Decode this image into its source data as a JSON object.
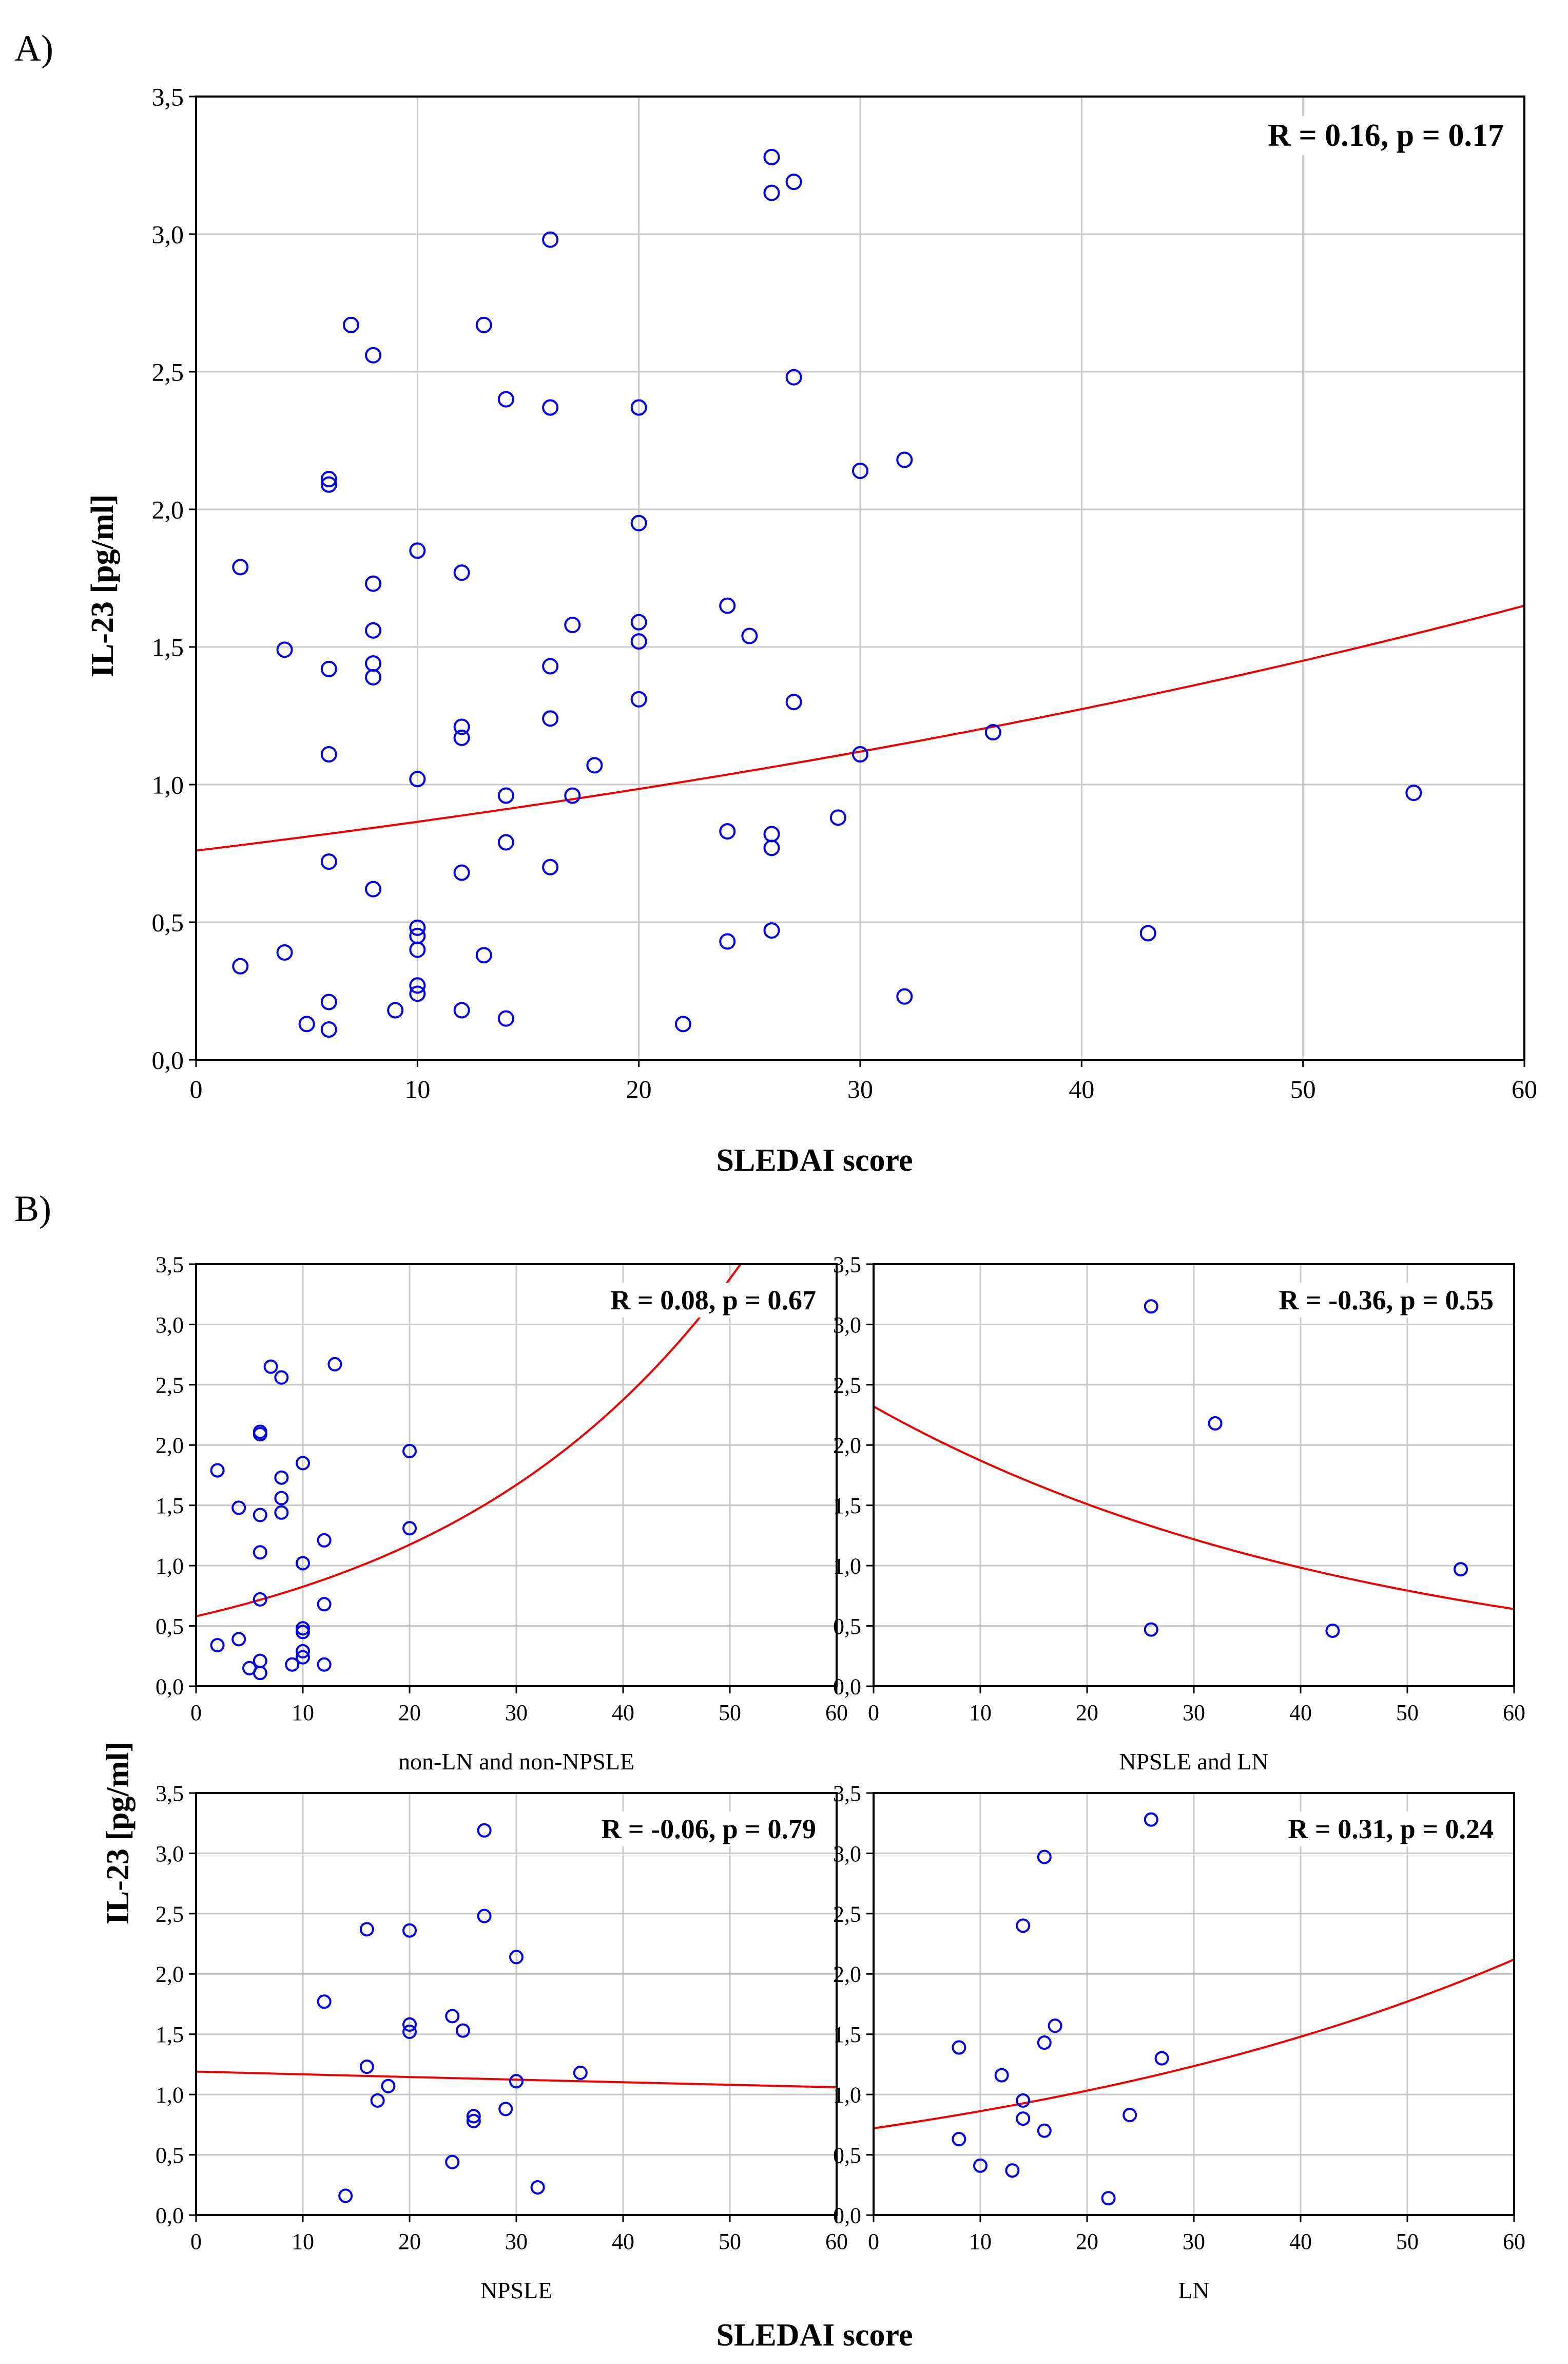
{
  "figure": {
    "panel_a_label": "A)",
    "panel_b_label": "B)",
    "ylabel": "IL-23 [pg/ml]",
    "xlabel": "SLEDAI score",
    "colors": {
      "points": "#0000ee",
      "fit": "#ee0000",
      "grid": "#c8c8c8",
      "axis": "#000000"
    }
  },
  "chart_data": [
    {
      "id": "A",
      "type": "scatter",
      "title": "",
      "annotation": "R = 0.16, p = 0.17",
      "xlabel": "SLEDAI score",
      "ylabel": "IL-23 [pg/ml]",
      "xlim": [
        0,
        60
      ],
      "ylim": [
        0,
        3.5
      ],
      "xticks": [
        "0",
        "10",
        "20",
        "30",
        "40",
        "50",
        "60"
      ],
      "yticks": [
        "0,0",
        "0,5",
        "1,0",
        "1,5",
        "2,0",
        "2,5",
        "3,0",
        "3,5"
      ],
      "fit": {
        "type": "exponential",
        "y_at_0": 0.76,
        "y_at_60": 1.65
      },
      "points": [
        [
          2,
          1.79
        ],
        [
          2,
          0.34
        ],
        [
          4,
          1.49
        ],
        [
          4,
          0.39
        ],
        [
          5,
          0.13
        ],
        [
          6,
          2.11
        ],
        [
          6,
          2.09
        ],
        [
          6,
          1.42
        ],
        [
          6,
          1.11
        ],
        [
          6,
          0.72
        ],
        [
          6,
          0.21
        ],
        [
          6,
          0.11
        ],
        [
          7,
          2.67
        ],
        [
          8,
          2.56
        ],
        [
          8,
          1.73
        ],
        [
          8,
          1.56
        ],
        [
          8,
          1.44
        ],
        [
          8,
          1.39
        ],
        [
          8,
          0.62
        ],
        [
          9,
          0.18
        ],
        [
          10,
          1.85
        ],
        [
          10,
          1.02
        ],
        [
          10,
          0.48
        ],
        [
          10,
          0.45
        ],
        [
          10,
          0.4
        ],
        [
          10,
          0.27
        ],
        [
          10,
          0.24
        ],
        [
          12,
          1.77
        ],
        [
          12,
          1.21
        ],
        [
          12,
          1.17
        ],
        [
          12,
          0.68
        ],
        [
          12,
          0.18
        ],
        [
          13,
          2.67
        ],
        [
          13,
          0.38
        ],
        [
          14,
          2.4
        ],
        [
          14,
          0.96
        ],
        [
          14,
          0.79
        ],
        [
          14,
          0.15
        ],
        [
          16,
          2.98
        ],
        [
          16,
          2.37
        ],
        [
          16,
          1.43
        ],
        [
          16,
          1.24
        ],
        [
          16,
          0.7
        ],
        [
          17,
          1.58
        ],
        [
          17,
          0.96
        ],
        [
          18,
          1.07
        ],
        [
          20,
          2.37
        ],
        [
          20,
          1.95
        ],
        [
          20,
          1.59
        ],
        [
          20,
          1.52
        ],
        [
          20,
          1.31
        ],
        [
          22,
          0.13
        ],
        [
          24,
          1.65
        ],
        [
          24,
          0.83
        ],
        [
          24,
          0.43
        ],
        [
          25,
          1.54
        ],
        [
          26,
          3.28
        ],
        [
          26,
          3.15
        ],
        [
          26,
          0.82
        ],
        [
          26,
          0.77
        ],
        [
          26,
          0.47
        ],
        [
          27,
          3.19
        ],
        [
          27,
          2.48
        ],
        [
          27,
          1.3
        ],
        [
          29,
          0.88
        ],
        [
          30,
          2.14
        ],
        [
          30,
          1.11
        ],
        [
          32,
          2.18
        ],
        [
          32,
          0.23
        ],
        [
          36,
          1.19
        ],
        [
          43,
          0.46
        ],
        [
          55,
          0.97
        ]
      ]
    },
    {
      "id": "B1",
      "type": "scatter",
      "title": "non-LN and non-NPSLE",
      "annotation": "R = 0.08, p = 0.67",
      "xlim": [
        0,
        60
      ],
      "ylim": [
        0,
        3.5
      ],
      "xticks": [
        "0",
        "10",
        "20",
        "30",
        "40",
        "50",
        "60"
      ],
      "yticks": [
        "0,0",
        "0,5",
        "1,0",
        "1,5",
        "2,0",
        "2,5",
        "3,0",
        "3,5"
      ],
      "fit": {
        "type": "exponential",
        "y_at_0": 0.58,
        "y_at_51": 3.5
      },
      "points": [
        [
          2,
          1.79
        ],
        [
          2,
          0.34
        ],
        [
          4,
          1.48
        ],
        [
          4,
          0.39
        ],
        [
          5,
          0.15
        ],
        [
          6,
          2.11
        ],
        [
          6,
          2.09
        ],
        [
          6,
          1.42
        ],
        [
          6,
          1.11
        ],
        [
          6,
          0.72
        ],
        [
          6,
          0.21
        ],
        [
          6,
          0.11
        ],
        [
          7,
          2.65
        ],
        [
          8,
          2.56
        ],
        [
          8,
          1.73
        ],
        [
          8,
          1.56
        ],
        [
          8,
          1.44
        ],
        [
          9,
          0.18
        ],
        [
          10,
          1.85
        ],
        [
          10,
          1.02
        ],
        [
          10,
          0.48
        ],
        [
          10,
          0.45
        ],
        [
          10,
          0.29
        ],
        [
          10,
          0.24
        ],
        [
          12,
          1.21
        ],
        [
          12,
          0.68
        ],
        [
          12,
          0.18
        ],
        [
          13,
          2.67
        ],
        [
          20,
          1.95
        ],
        [
          20,
          1.31
        ]
      ]
    },
    {
      "id": "B2",
      "type": "scatter",
      "title": "NPSLE and LN",
      "annotation": "R = -0.36, p = 0.55",
      "xlim": [
        0,
        60
      ],
      "ylim": [
        0,
        3.5
      ],
      "xticks": [
        "0",
        "10",
        "20",
        "30",
        "40",
        "50",
        "60"
      ],
      "yticks": [
        "0,0",
        "0,5",
        "1,0",
        "1,5",
        "2,0",
        "2,5",
        "3,0",
        "3,5"
      ],
      "fit": {
        "type": "exponential",
        "y_at_0": 2.32,
        "y_at_60": 0.64
      },
      "points": [
        [
          26,
          3.15
        ],
        [
          26,
          0.47
        ],
        [
          32,
          2.18
        ],
        [
          43,
          0.46
        ],
        [
          55,
          0.97
        ]
      ]
    },
    {
      "id": "B3",
      "type": "scatter",
      "title": "NPSLE",
      "annotation": "R = -0.06, p = 0.79",
      "xlim": [
        0,
        60
      ],
      "ylim": [
        0,
        3.5
      ],
      "xticks": [
        "0",
        "10",
        "20",
        "30",
        "40",
        "50",
        "60"
      ],
      "yticks": [
        "0,0",
        "0,5",
        "1,0",
        "1,5",
        "2,0",
        "2,5",
        "3,0",
        "3,5"
      ],
      "fit": {
        "type": "exponential",
        "y_at_0": 1.19,
        "y_at_60": 1.06
      },
      "points": [
        [
          12,
          1.77
        ],
        [
          14,
          0.16
        ],
        [
          16,
          2.37
        ],
        [
          16,
          1.23
        ],
        [
          17,
          0.95
        ],
        [
          18,
          1.07
        ],
        [
          20,
          2.36
        ],
        [
          20,
          1.58
        ],
        [
          20,
          1.52
        ],
        [
          24,
          1.65
        ],
        [
          24,
          0.44
        ],
        [
          25,
          1.53
        ],
        [
          26,
          0.82
        ],
        [
          26,
          0.78
        ],
        [
          27,
          3.19
        ],
        [
          27,
          2.48
        ],
        [
          29,
          0.88
        ],
        [
          30,
          2.14
        ],
        [
          30,
          1.11
        ],
        [
          32,
          0.23
        ],
        [
          36,
          1.18
        ]
      ]
    },
    {
      "id": "B4",
      "type": "scatter",
      "title": "LN",
      "annotation": "R = 0.31, p = 0.24",
      "xlim": [
        0,
        60
      ],
      "ylim": [
        0,
        3.5
      ],
      "xticks": [
        "0",
        "10",
        "20",
        "30",
        "40",
        "50",
        "60"
      ],
      "yticks": [
        "0,0",
        "0,5",
        "1,0",
        "1,5",
        "2,0",
        "2,5",
        "3,0",
        "3,5"
      ],
      "fit": {
        "type": "exponential",
        "y_at_0": 0.72,
        "y_at_60": 2.12
      },
      "points": [
        [
          8,
          1.39
        ],
        [
          8,
          0.63
        ],
        [
          10,
          0.41
        ],
        [
          12,
          1.16
        ],
        [
          13,
          0.37
        ],
        [
          14,
          2.4
        ],
        [
          14,
          0.95
        ],
        [
          14,
          0.8
        ],
        [
          16,
          2.97
        ],
        [
          16,
          1.43
        ],
        [
          16,
          0.7
        ],
        [
          17,
          1.57
        ],
        [
          22,
          0.14
        ],
        [
          24,
          0.83
        ],
        [
          26,
          3.28
        ],
        [
          27,
          1.3
        ]
      ]
    }
  ]
}
